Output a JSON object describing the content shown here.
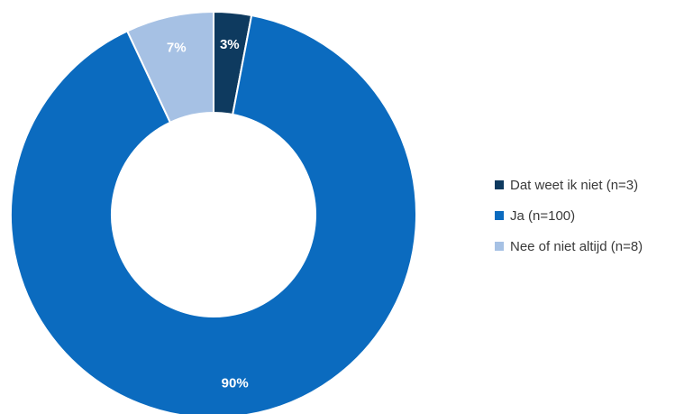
{
  "chart_data": {
    "type": "pie",
    "variant": "donut",
    "categories": [
      "Dat weet ik niet (n=3)",
      "Ja (n=100)",
      "Nee of niet altijd (n=8)"
    ],
    "values": [
      3,
      90,
      7
    ],
    "counts": [
      3,
      100,
      8
    ],
    "data_labels": [
      "3%",
      "90%",
      "7%"
    ],
    "colors": [
      "#0e3a5f",
      "#0b6bbf",
      "#a6c1e4"
    ],
    "legend_position": "right",
    "start_angle_deg": 0,
    "direction": "clockwise"
  }
}
